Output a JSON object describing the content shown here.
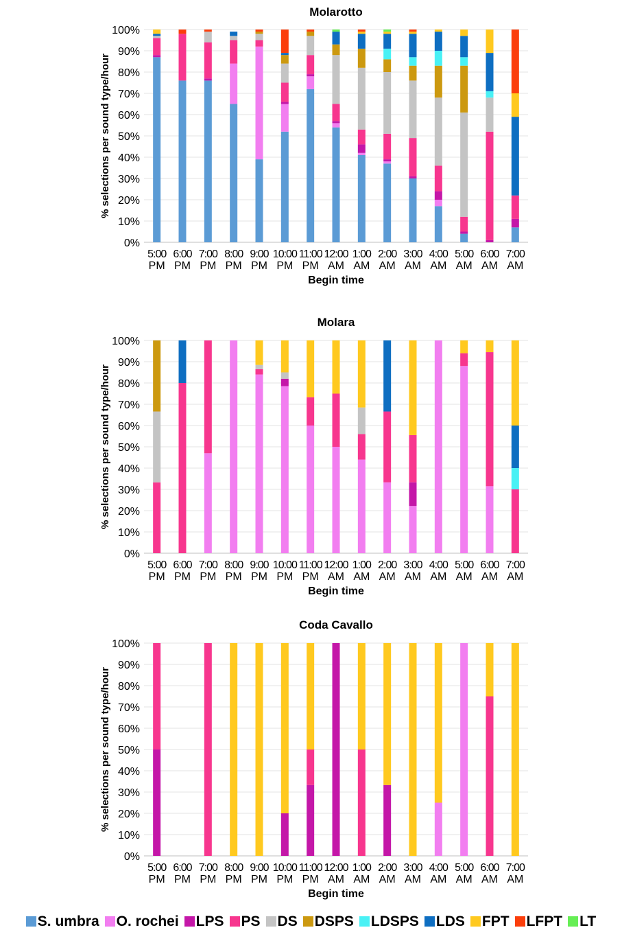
{
  "series": [
    {
      "name": "S. umbra",
      "color": "#5b9bd5"
    },
    {
      "name": "O. rochei",
      "color": "#f27ef0"
    },
    {
      "name": "LPS",
      "color": "#c417a8"
    },
    {
      "name": "PS",
      "color": "#f7368e"
    },
    {
      "name": "DS",
      "color": "#c4c4c4"
    },
    {
      "name": "DSPS",
      "color": "#cc9910"
    },
    {
      "name": "LDSPS",
      "color": "#49f1f5"
    },
    {
      "name": "LDS",
      "color": "#0e6ec1"
    },
    {
      "name": "FPT",
      "color": "#ffc91f"
    },
    {
      "name": "LFPT",
      "color": "#fb3e0b"
    },
    {
      "name": "LT",
      "color": "#66ee55"
    }
  ],
  "chart_data": [
    {
      "type": "bar",
      "stacked": true,
      "title": "Molarotto",
      "xlabel": "Begin time",
      "ylabel": "% selections per sound type/hour",
      "ylim": [
        0,
        100
      ],
      "yticks": [
        "0%",
        "10%",
        "20%",
        "30%",
        "40%",
        "50%",
        "60%",
        "70%",
        "80%",
        "90%",
        "100%"
      ],
      "categories": [
        "5:00 PM",
        "6:00 PM",
        "7:00 PM",
        "8:00 PM",
        "9:00 PM",
        "10:00 PM",
        "11:00 PM",
        "12:00 AM",
        "1:00 AM",
        "2:00 AM",
        "3:00 AM",
        "4:00 AM",
        "5:00 AM",
        "6:00 AM",
        "7:00 AM"
      ],
      "series": [
        {
          "name": "S. umbra",
          "values": [
            87,
            76,
            76,
            65,
            39,
            52,
            72,
            54,
            41,
            37,
            30,
            17,
            4,
            0,
            7
          ]
        },
        {
          "name": "O. rochei",
          "values": [
            0,
            0,
            0,
            19,
            53,
            13,
            6,
            2,
            1,
            1,
            0,
            3,
            0,
            0,
            0
          ]
        },
        {
          "name": "LPS",
          "values": [
            1,
            0,
            1,
            0,
            0,
            1,
            1,
            1,
            4,
            1,
            1,
            4,
            1,
            1,
            4
          ]
        },
        {
          "name": "PS",
          "values": [
            8,
            22,
            17,
            11,
            3,
            9,
            9,
            8,
            7,
            12,
            18,
            12,
            7,
            51,
            11
          ]
        },
        {
          "name": "DS",
          "values": [
            1,
            0,
            5,
            2,
            3,
            9,
            9,
            23,
            29,
            29,
            27,
            32,
            49,
            16,
            0
          ]
        },
        {
          "name": "DSPS",
          "values": [
            0,
            0,
            0,
            0,
            1,
            4,
            2,
            5,
            9,
            6,
            7,
            15,
            22,
            0,
            0
          ]
        },
        {
          "name": "LDSPS",
          "values": [
            0,
            0,
            0,
            0,
            0,
            0,
            0,
            0,
            0,
            5,
            4,
            7,
            4,
            3,
            0
          ]
        },
        {
          "name": "LDS",
          "values": [
            1,
            0,
            0,
            2,
            0,
            1,
            0,
            6,
            7,
            7,
            11,
            9,
            10,
            18,
            37
          ]
        },
        {
          "name": "FPT",
          "values": [
            2,
            0,
            0,
            0,
            0,
            0,
            0,
            0,
            1,
            1,
            1,
            1,
            3,
            11,
            11
          ]
        },
        {
          "name": "LFPT",
          "values": [
            0,
            2,
            1,
            0,
            1,
            11,
            1,
            0,
            1,
            0,
            1,
            0,
            0,
            0,
            30
          ]
        },
        {
          "name": "LT",
          "values": [
            0,
            0,
            0,
            0,
            0,
            0,
            0,
            1,
            0,
            1,
            0,
            0,
            0,
            0,
            0
          ]
        }
      ]
    },
    {
      "type": "bar",
      "stacked": true,
      "title": "Molara",
      "xlabel": "Begin time",
      "ylabel": "% selections per sound type/hour",
      "ylim": [
        0,
        100
      ],
      "yticks": [
        "0%",
        "10%",
        "20%",
        "30%",
        "40%",
        "50%",
        "60%",
        "70%",
        "80%",
        "90%",
        "100%"
      ],
      "categories": [
        "5:00 PM",
        "6:00 PM",
        "7:00 PM",
        "8:00 PM",
        "9:00 PM",
        "10:00 PM",
        "11:00 PM",
        "12:00 AM",
        "1:00 AM",
        "2:00 AM",
        "3:00 AM",
        "4:00 AM",
        "5:00 AM",
        "6:00 AM",
        "7:00 AM"
      ],
      "series": [
        {
          "name": "S. umbra",
          "values": [
            0,
            0,
            0,
            0,
            0,
            0,
            0,
            0,
            0,
            0,
            0,
            0,
            0,
            0,
            0
          ]
        },
        {
          "name": "O. rochei",
          "values": [
            0,
            0,
            47,
            100,
            84,
            78.5,
            60,
            50,
            44,
            33.3,
            22.2,
            100,
            88,
            31.5,
            0
          ]
        },
        {
          "name": "LPS",
          "values": [
            0,
            0,
            0,
            0,
            0,
            3.5,
            0,
            0,
            0,
            0,
            11.1,
            0,
            0,
            0,
            0
          ]
        },
        {
          "name": "PS",
          "values": [
            33.3,
            80,
            53,
            0,
            2.5,
            0,
            13.3,
            25,
            12,
            33.3,
            22.2,
            0,
            6,
            63,
            30
          ]
        },
        {
          "name": "DS",
          "values": [
            33.3,
            0,
            0,
            0,
            2,
            3,
            0,
            0,
            12.5,
            0,
            0,
            0,
            0,
            0,
            0
          ]
        },
        {
          "name": "DSPS",
          "values": [
            33.4,
            0,
            0,
            0,
            0,
            0,
            0,
            0,
            0,
            0,
            0,
            0,
            0,
            0,
            0
          ]
        },
        {
          "name": "LDSPS",
          "values": [
            0,
            0,
            0,
            0,
            0,
            0,
            0,
            0,
            0,
            0,
            0,
            0,
            0,
            0,
            10
          ]
        },
        {
          "name": "LDS",
          "values": [
            0,
            20,
            0,
            0,
            0,
            0,
            0,
            0,
            0,
            33.4,
            0,
            0,
            0,
            0,
            20
          ]
        },
        {
          "name": "FPT",
          "values": [
            0,
            0,
            0,
            0,
            11.5,
            15,
            26.7,
            25,
            31.5,
            0,
            44.5,
            0,
            6,
            5.5,
            40
          ]
        },
        {
          "name": "LFPT",
          "values": [
            0,
            0,
            0,
            0,
            0,
            0,
            0,
            0,
            0,
            0,
            0,
            0,
            0,
            0,
            0
          ]
        },
        {
          "name": "LT",
          "values": [
            0,
            0,
            0,
            0,
            0,
            0,
            0,
            0,
            0,
            0,
            0,
            0,
            0,
            0,
            0
          ]
        }
      ]
    },
    {
      "type": "bar",
      "stacked": true,
      "title": "Coda Cavallo",
      "xlabel": "Begin time",
      "ylabel": "% selections per sound type/hour",
      "ylim": [
        0,
        100
      ],
      "yticks": [
        "0%",
        "10%",
        "20%",
        "30%",
        "40%",
        "50%",
        "60%",
        "70%",
        "80%",
        "90%",
        "100%"
      ],
      "categories": [
        "5:00 PM",
        "6:00 PM",
        "7:00 PM",
        "8:00 PM",
        "9:00 PM",
        "10:00 PM",
        "11:00 PM",
        "12:00 AM",
        "1:00 AM",
        "2:00 AM",
        "3:00 AM",
        "4:00 AM",
        "5:00 AM",
        "6:00 AM",
        "7:00 AM"
      ],
      "series": [
        {
          "name": "S. umbra",
          "values": [
            0,
            0,
            0,
            0,
            0,
            0,
            0,
            0,
            0,
            0,
            0,
            0,
            0,
            0,
            0
          ]
        },
        {
          "name": "O. rochei",
          "values": [
            0,
            0,
            0,
            0,
            0,
            0,
            0,
            0,
            0,
            0,
            0,
            25,
            100,
            0,
            0
          ]
        },
        {
          "name": "LPS",
          "values": [
            50,
            0,
            0,
            0,
            0,
            20,
            33.3,
            100,
            0,
            33.3,
            0,
            0,
            0,
            0,
            0
          ]
        },
        {
          "name": "PS",
          "values": [
            50,
            0,
            100,
            0,
            0,
            0,
            16.7,
            0,
            50,
            0,
            0,
            0,
            0,
            75,
            0
          ]
        },
        {
          "name": "DS",
          "values": [
            0,
            0,
            0,
            0,
            0,
            0,
            0,
            0,
            0,
            0,
            0,
            0,
            0,
            0,
            0
          ]
        },
        {
          "name": "DSPS",
          "values": [
            0,
            0,
            0,
            0,
            0,
            0,
            0,
            0,
            0,
            0,
            0,
            0,
            0,
            0,
            0
          ]
        },
        {
          "name": "LDSPS",
          "values": [
            0,
            0,
            0,
            0,
            0,
            0,
            0,
            0,
            0,
            0,
            0,
            0,
            0,
            0,
            0
          ]
        },
        {
          "name": "LDS",
          "values": [
            0,
            0,
            0,
            0,
            0,
            0,
            0,
            0,
            0,
            0,
            0,
            0,
            0,
            0,
            0
          ]
        },
        {
          "name": "FPT",
          "values": [
            0,
            0,
            0,
            100,
            100,
            80,
            50,
            0,
            50,
            66.7,
            100,
            75,
            0,
            25,
            100
          ]
        },
        {
          "name": "LFPT",
          "values": [
            0,
            0,
            0,
            0,
            0,
            0,
            0,
            0,
            0,
            0,
            0,
            0,
            0,
            0,
            0
          ]
        },
        {
          "name": "LT",
          "values": [
            0,
            0,
            0,
            0,
            0,
            0,
            0,
            0,
            0,
            0,
            0,
            0,
            0,
            0,
            0
          ]
        }
      ]
    }
  ]
}
